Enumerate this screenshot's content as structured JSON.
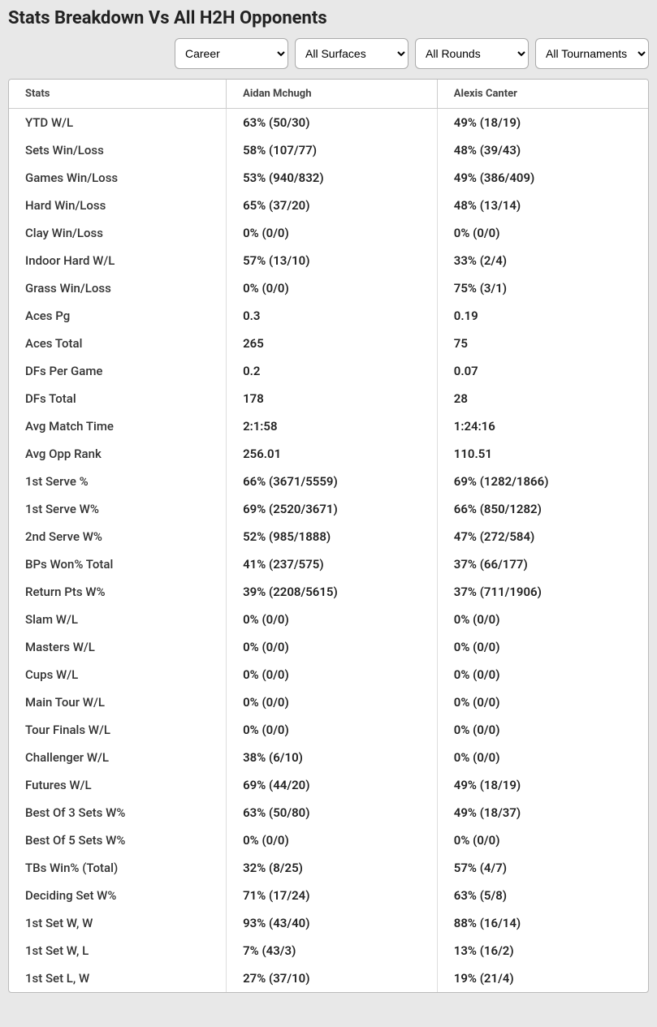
{
  "title": "Stats Breakdown Vs All H2H Opponents",
  "filters": {
    "career": {
      "selected": "Career",
      "options": [
        "Career"
      ]
    },
    "surface": {
      "selected": "All Surfaces",
      "options": [
        "All Surfaces"
      ]
    },
    "round": {
      "selected": "All Rounds",
      "options": [
        "All Rounds"
      ]
    },
    "tournament": {
      "selected": "All Tournaments",
      "options": [
        "All Tournaments"
      ]
    }
  },
  "table": {
    "headers": {
      "stat": "Stats",
      "player1": "Aidan Mchugh",
      "player2": "Alexis Canter"
    },
    "rows": [
      {
        "stat": "YTD W/L",
        "p1": "63% (50/30)",
        "p2": "49% (18/19)"
      },
      {
        "stat": "Sets Win/Loss",
        "p1": "58% (107/77)",
        "p2": "48% (39/43)"
      },
      {
        "stat": "Games Win/Loss",
        "p1": "53% (940/832)",
        "p2": "49% (386/409)"
      },
      {
        "stat": "Hard Win/Loss",
        "p1": "65% (37/20)",
        "p2": "48% (13/14)"
      },
      {
        "stat": "Clay Win/Loss",
        "p1": "0% (0/0)",
        "p2": "0% (0/0)"
      },
      {
        "stat": "Indoor Hard W/L",
        "p1": "57% (13/10)",
        "p2": "33% (2/4)"
      },
      {
        "stat": "Grass Win/Loss",
        "p1": "0% (0/0)",
        "p2": "75% (3/1)"
      },
      {
        "stat": "Aces Pg",
        "p1": "0.3",
        "p2": "0.19"
      },
      {
        "stat": "Aces Total",
        "p1": "265",
        "p2": "75"
      },
      {
        "stat": "DFs Per Game",
        "p1": "0.2",
        "p2": "0.07"
      },
      {
        "stat": "DFs Total",
        "p1": "178",
        "p2": "28"
      },
      {
        "stat": "Avg Match Time",
        "p1": "2:1:58",
        "p2": "1:24:16"
      },
      {
        "stat": "Avg Opp Rank",
        "p1": "256.01",
        "p2": "110.51"
      },
      {
        "stat": "1st Serve %",
        "p1": "66% (3671/5559)",
        "p2": "69% (1282/1866)"
      },
      {
        "stat": "1st Serve W%",
        "p1": "69% (2520/3671)",
        "p2": "66% (850/1282)"
      },
      {
        "stat": "2nd Serve W%",
        "p1": "52% (985/1888)",
        "p2": "47% (272/584)"
      },
      {
        "stat": "BPs Won% Total",
        "p1": "41% (237/575)",
        "p2": "37% (66/177)"
      },
      {
        "stat": "Return Pts W%",
        "p1": "39% (2208/5615)",
        "p2": "37% (711/1906)"
      },
      {
        "stat": "Slam W/L",
        "p1": "0% (0/0)",
        "p2": "0% (0/0)"
      },
      {
        "stat": "Masters W/L",
        "p1": "0% (0/0)",
        "p2": "0% (0/0)"
      },
      {
        "stat": "Cups W/L",
        "p1": "0% (0/0)",
        "p2": "0% (0/0)"
      },
      {
        "stat": "Main Tour W/L",
        "p1": "0% (0/0)",
        "p2": "0% (0/0)"
      },
      {
        "stat": "Tour Finals W/L",
        "p1": "0% (0/0)",
        "p2": "0% (0/0)"
      },
      {
        "stat": "Challenger W/L",
        "p1": "38% (6/10)",
        "p2": "0% (0/0)"
      },
      {
        "stat": "Futures W/L",
        "p1": "69% (44/20)",
        "p2": "49% (18/19)"
      },
      {
        "stat": "Best Of 3 Sets W%",
        "p1": "63% (50/80)",
        "p2": "49% (18/37)"
      },
      {
        "stat": "Best Of 5 Sets W%",
        "p1": "0% (0/0)",
        "p2": "0% (0/0)"
      },
      {
        "stat": "TBs Win% (Total)",
        "p1": "32% (8/25)",
        "p2": "57% (4/7)"
      },
      {
        "stat": "Deciding Set W%",
        "p1": "71% (17/24)",
        "p2": "63% (5/8)"
      },
      {
        "stat": "1st Set W, W",
        "p1": "93% (43/40)",
        "p2": "88% (16/14)"
      },
      {
        "stat": "1st Set W, L",
        "p1": "7% (43/3)",
        "p2": "13% (16/2)"
      },
      {
        "stat": "1st Set L, W",
        "p1": "27% (37/10)",
        "p2": "19% (21/4)"
      }
    ]
  },
  "styling": {
    "page_bg": "#e8e8e8",
    "table_bg": "#ffffff",
    "border_color": "#bbbbbb",
    "cell_border": "#dddddd",
    "header_border": "#cccccc",
    "title_fontsize": 22,
    "body_fontsize": 15,
    "header_fontsize": 13,
    "row_font_weight": 600
  }
}
